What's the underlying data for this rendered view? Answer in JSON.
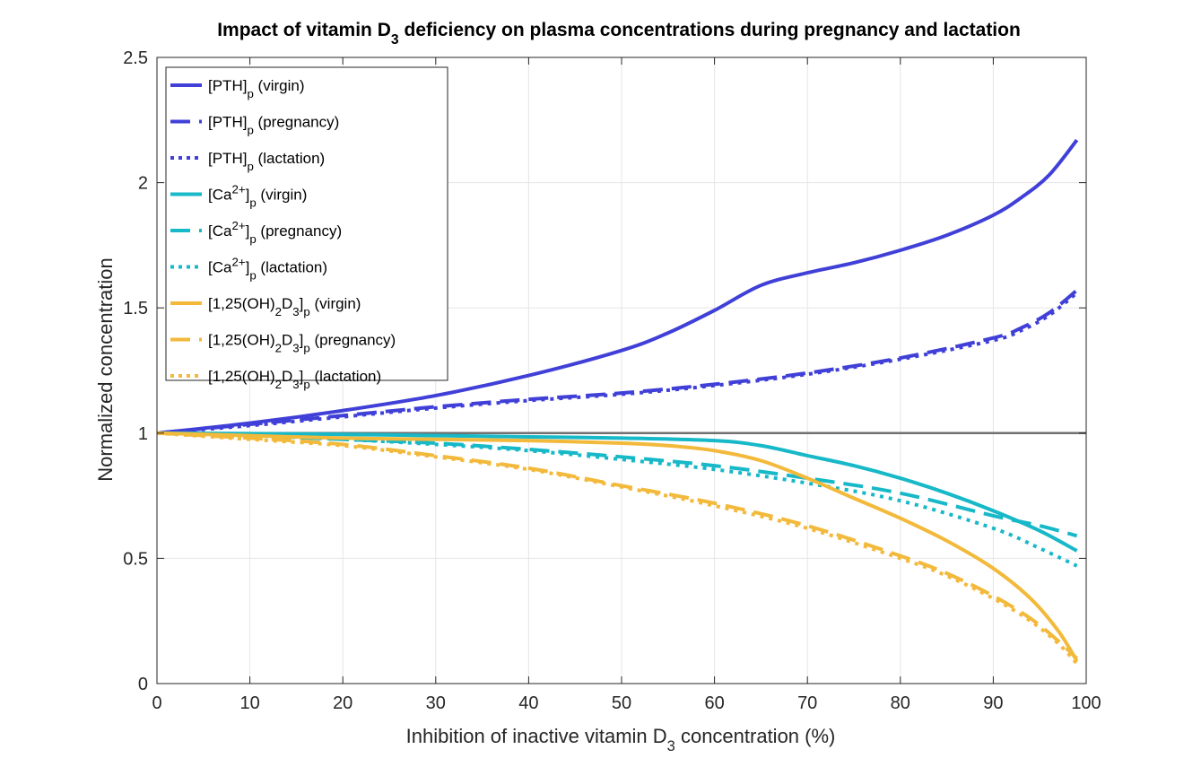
{
  "chart_data": {
    "type": "line",
    "title_parts": [
      "Impact of vitamin D",
      "3",
      " deficiency on plasma concentrations during pregnancy and lactation"
    ],
    "xlabel_parts": [
      "Inhibition of inactive vitamin D",
      "3",
      " concentration (%)"
    ],
    "ylabel": "Normalized concentration",
    "xlim": [
      0,
      100
    ],
    "ylim": [
      0,
      2.5
    ],
    "xticks": [
      0,
      10,
      20,
      30,
      40,
      50,
      60,
      70,
      80,
      90,
      100
    ],
    "yticks": [
      0,
      0.5,
      1,
      1.5,
      2,
      2.5
    ],
    "xtick_labels": [
      "0",
      "10",
      "20",
      "30",
      "40",
      "50",
      "60",
      "70",
      "80",
      "90",
      "100"
    ],
    "ytick_labels": [
      "0",
      "0.5",
      "1",
      "1.5",
      "2",
      "2.5"
    ],
    "grid": true,
    "legend_position": "top-left",
    "reference_line": {
      "y": 1,
      "color": "#707070"
    },
    "colors": {
      "pth": "#4040d8",
      "ca": "#17b8c8",
      "vitd": "#f2b93b"
    },
    "legend": [
      {
        "parts": [
          "[PTH]",
          "p",
          " (virgin)"
        ],
        "sub": [
          1
        ],
        "sup": [],
        "color": "#4040d8",
        "dash": "solid"
      },
      {
        "parts": [
          "[PTH]",
          "p",
          " (pregnancy)"
        ],
        "sub": [
          1
        ],
        "sup": [],
        "color": "#4040d8",
        "dash": "dashed"
      },
      {
        "parts": [
          "[PTH]",
          "p",
          " (lactation)"
        ],
        "sub": [
          1
        ],
        "sup": [],
        "color": "#4040d8",
        "dash": "dotted"
      },
      {
        "parts": [
          "[Ca",
          "2+",
          "]",
          "p",
          " (virgin)"
        ],
        "sub": [
          3
        ],
        "sup": [
          1
        ],
        "color": "#17b8c8",
        "dash": "solid"
      },
      {
        "parts": [
          "[Ca",
          "2+",
          "]",
          "p",
          " (pregnancy)"
        ],
        "sub": [
          3
        ],
        "sup": [
          1
        ],
        "color": "#17b8c8",
        "dash": "dashed"
      },
      {
        "parts": [
          "[Ca",
          "2+",
          "]",
          "p",
          " (lactation)"
        ],
        "sub": [
          3
        ],
        "sup": [
          1
        ],
        "color": "#17b8c8",
        "dash": "dotted"
      },
      {
        "parts": [
          "[1,25(OH)",
          "2",
          "D",
          "3",
          "]",
          "p",
          " (virgin)"
        ],
        "sub": [
          1,
          3,
          5
        ],
        "sup": [],
        "color": "#f2b93b",
        "dash": "solid"
      },
      {
        "parts": [
          "[1,25(OH)",
          "2",
          "D",
          "3",
          "]",
          "p",
          " (pregnancy)"
        ],
        "sub": [
          1,
          3,
          5
        ],
        "sup": [],
        "color": "#f2b93b",
        "dash": "dashed"
      },
      {
        "parts": [
          "[1,25(OH)",
          "2",
          "D",
          "3",
          "]",
          "p",
          " (lactation)"
        ],
        "sub": [
          1,
          3,
          5
        ],
        "sup": [],
        "color": "#f2b93b",
        "dash": "dotted"
      }
    ],
    "series": [
      {
        "key": "pth-virgin",
        "color": "#4040d8",
        "dash": "solid",
        "x": [
          0,
          10,
          20,
          30,
          40,
          50,
          55,
          60,
          65,
          70,
          75,
          80,
          85,
          90,
          93,
          96,
          99
        ],
        "y": [
          1.0,
          1.04,
          1.09,
          1.15,
          1.23,
          1.33,
          1.4,
          1.49,
          1.59,
          1.64,
          1.68,
          1.73,
          1.79,
          1.87,
          1.94,
          2.03,
          2.17
        ]
      },
      {
        "key": "pth-pregnancy",
        "color": "#4040d8",
        "dash": "dashed",
        "x": [
          0,
          10,
          20,
          30,
          40,
          50,
          60,
          70,
          80,
          90,
          93,
          96,
          99
        ],
        "y": [
          1.0,
          1.035,
          1.07,
          1.105,
          1.135,
          1.16,
          1.195,
          1.24,
          1.3,
          1.38,
          1.42,
          1.48,
          1.57
        ]
      },
      {
        "key": "pth-lactation",
        "color": "#4040d8",
        "dash": "dotted",
        "x": [
          0,
          10,
          20,
          30,
          40,
          50,
          60,
          70,
          80,
          90,
          93,
          96,
          99
        ],
        "y": [
          1.0,
          1.03,
          1.065,
          1.1,
          1.13,
          1.155,
          1.19,
          1.235,
          1.295,
          1.37,
          1.41,
          1.47,
          1.56
        ]
      },
      {
        "key": "ca-virgin",
        "color": "#17b8c8",
        "dash": "solid",
        "x": [
          0,
          10,
          20,
          30,
          40,
          50,
          60,
          65,
          70,
          75,
          80,
          85,
          90,
          95,
          99
        ],
        "y": [
          1.0,
          0.998,
          0.995,
          0.99,
          0.985,
          0.98,
          0.97,
          0.95,
          0.91,
          0.87,
          0.82,
          0.76,
          0.69,
          0.61,
          0.53
        ]
      },
      {
        "key": "ca-pregnancy",
        "color": "#17b8c8",
        "dash": "dashed",
        "x": [
          0,
          10,
          20,
          30,
          40,
          50,
          60,
          70,
          80,
          90,
          95,
          99
        ],
        "y": [
          1.0,
          0.99,
          0.975,
          0.96,
          0.935,
          0.905,
          0.87,
          0.82,
          0.76,
          0.67,
          0.63,
          0.59
        ]
      },
      {
        "key": "ca-lactation",
        "color": "#17b8c8",
        "dash": "dotted",
        "x": [
          0,
          10,
          20,
          30,
          40,
          50,
          60,
          70,
          80,
          90,
          95,
          99
        ],
        "y": [
          1.0,
          0.99,
          0.975,
          0.955,
          0.93,
          0.895,
          0.855,
          0.8,
          0.73,
          0.62,
          0.54,
          0.47
        ]
      },
      {
        "key": "vitd-virgin",
        "color": "#f2b93b",
        "dash": "solid",
        "x": [
          0,
          10,
          20,
          30,
          40,
          50,
          55,
          60,
          65,
          70,
          75,
          80,
          85,
          90,
          94,
          97,
          99
        ],
        "y": [
          1.0,
          0.99,
          0.98,
          0.975,
          0.97,
          0.96,
          0.95,
          0.93,
          0.89,
          0.82,
          0.74,
          0.66,
          0.57,
          0.46,
          0.34,
          0.21,
          0.09
        ]
      },
      {
        "key": "vitd-pregnancy",
        "color": "#f2b93b",
        "dash": "dashed",
        "x": [
          0,
          10,
          20,
          30,
          40,
          50,
          60,
          70,
          80,
          85,
          90,
          94,
          97,
          99
        ],
        "y": [
          1.0,
          0.98,
          0.955,
          0.91,
          0.86,
          0.79,
          0.72,
          0.63,
          0.51,
          0.44,
          0.35,
          0.26,
          0.17,
          0.1
        ]
      },
      {
        "key": "vitd-lactation",
        "color": "#f2b93b",
        "dash": "dotted",
        "x": [
          0,
          10,
          20,
          30,
          40,
          50,
          60,
          70,
          80,
          85,
          90,
          94,
          97,
          99
        ],
        "y": [
          1.0,
          0.975,
          0.95,
          0.905,
          0.855,
          0.785,
          0.71,
          0.62,
          0.5,
          0.43,
          0.34,
          0.25,
          0.16,
          0.08
        ]
      }
    ]
  }
}
